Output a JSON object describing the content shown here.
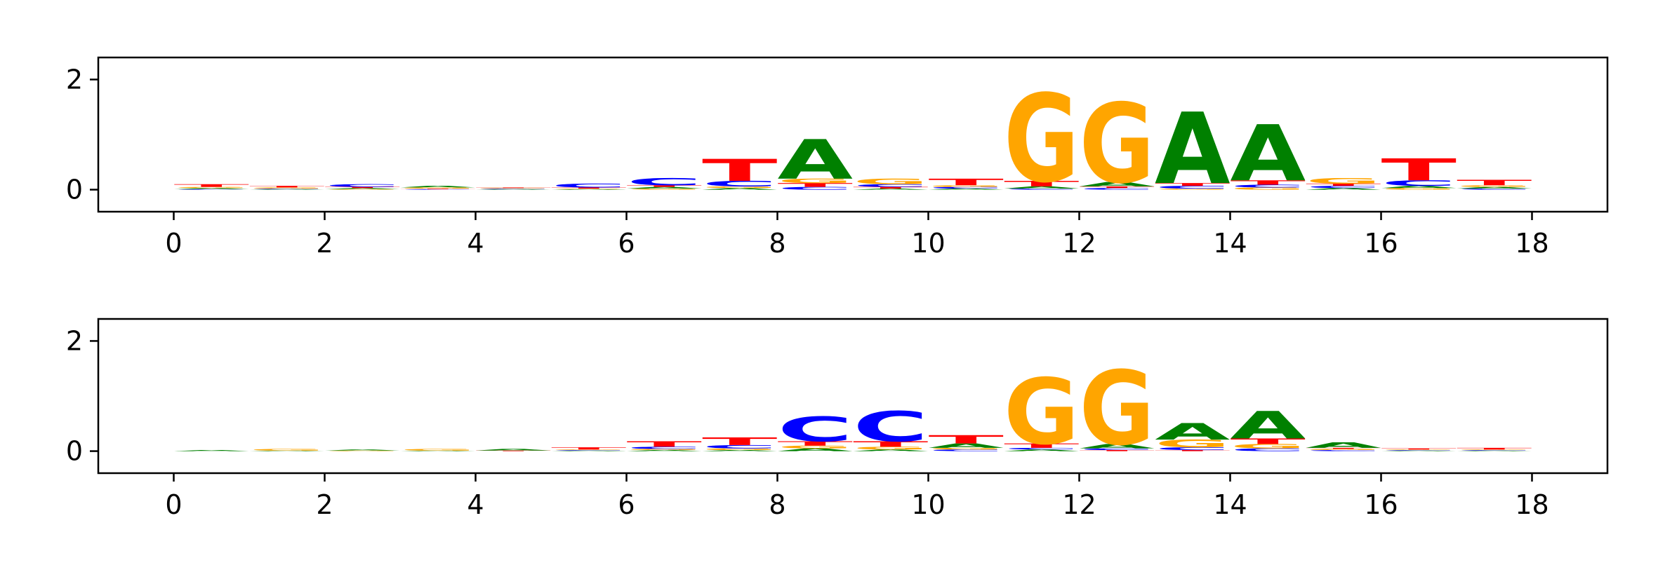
{
  "chart_data": [
    {
      "type": "sequence-logo",
      "title": "",
      "xlabel": "",
      "ylabel": "",
      "xlim": [
        -1,
        19
      ],
      "ylim": [
        -0.4,
        2.4
      ],
      "xticks": [
        0,
        2,
        4,
        6,
        8,
        10,
        12,
        14,
        16,
        18
      ],
      "xtick_labels": [
        "0",
        "2",
        "4",
        "6",
        "8",
        "10",
        "12",
        "14",
        "16",
        "18"
      ],
      "yticks": [
        0,
        2
      ],
      "ytick_labels": [
        "0",
        "2"
      ],
      "grid": false,
      "alphabet_colors": {
        "A": "#008000",
        "C": "#0000ff",
        "G": "#ffa500",
        "T": "#ff0000"
      },
      "positions": [
        {
          "x": 0,
          "A": 0.02,
          "C": 0.01,
          "G": 0.02,
          "T": 0.05
        },
        {
          "x": 1,
          "A": 0.01,
          "C": 0.01,
          "G": 0.02,
          "T": 0.03
        },
        {
          "x": 2,
          "A": 0.02,
          "C": 0.05,
          "G": 0.01,
          "T": 0.02
        },
        {
          "x": 3,
          "A": 0.03,
          "C": 0.01,
          "G": 0.02,
          "T": 0.01
        },
        {
          "x": 4,
          "A": 0.01,
          "C": 0.01,
          "G": 0.01,
          "T": 0.01
        },
        {
          "x": 5,
          "A": 0.01,
          "C": 0.07,
          "G": 0.01,
          "T": 0.02
        },
        {
          "x": 6,
          "A": 0.03,
          "C": 0.13,
          "G": 0.02,
          "T": 0.03
        },
        {
          "x": 7,
          "A": 0.03,
          "C": 0.1,
          "G": 0.03,
          "T": 0.4
        },
        {
          "x": 8,
          "A": 0.72,
          "C": 0.05,
          "G": 0.08,
          "T": 0.07
        },
        {
          "x": 9,
          "A": 0.02,
          "C": 0.05,
          "G": 0.1,
          "T": 0.03
        },
        {
          "x": 10,
          "A": 0.02,
          "C": 0.03,
          "G": 0.03,
          "T": 0.12
        },
        {
          "x": 11,
          "A": 0.04,
          "C": 0.02,
          "G": 1.6,
          "T": 0.1
        },
        {
          "x": 12,
          "A": 0.08,
          "C": 0.03,
          "G": 1.45,
          "T": 0.03
        },
        {
          "x": 13,
          "A": 1.3,
          "C": 0.05,
          "G": 0.02,
          "T": 0.05
        },
        {
          "x": 14,
          "A": 1.02,
          "C": 0.05,
          "G": 0.04,
          "T": 0.08
        },
        {
          "x": 15,
          "A": 0.03,
          "C": 0.04,
          "G": 0.1,
          "T": 0.04
        },
        {
          "x": 16,
          "A": 0.04,
          "C": 0.1,
          "G": 0.03,
          "T": 0.4
        },
        {
          "x": 17,
          "A": 0.03,
          "C": 0.02,
          "G": 0.03,
          "T": 0.1
        }
      ]
    },
    {
      "type": "sequence-logo",
      "title": "",
      "xlabel": "",
      "ylabel": "",
      "xlim": [
        -1,
        19
      ],
      "ylim": [
        -0.4,
        2.4
      ],
      "xticks": [
        0,
        2,
        4,
        6,
        8,
        10,
        12,
        14,
        16,
        18
      ],
      "xtick_labels": [
        "0",
        "2",
        "4",
        "6",
        "8",
        "10",
        "12",
        "14",
        "16",
        "18"
      ],
      "yticks": [
        0,
        2
      ],
      "ytick_labels": [
        "0",
        "2"
      ],
      "grid": false,
      "alphabet_colors": {
        "A": "#008000",
        "C": "#0000ff",
        "G": "#ffa500",
        "T": "#ff0000"
      },
      "positions": [
        {
          "x": 0,
          "A": 0.02,
          "C": 0.0,
          "G": 0.0,
          "T": 0.0
        },
        {
          "x": 1,
          "A": 0.01,
          "C": 0.0,
          "G": 0.03,
          "T": 0.0
        },
        {
          "x": 2,
          "A": 0.02,
          "C": 0.0,
          "G": 0.01,
          "T": 0.0
        },
        {
          "x": 3,
          "A": 0.01,
          "C": 0.0,
          "G": 0.03,
          "T": 0.0
        },
        {
          "x": 4,
          "A": 0.03,
          "C": 0.0,
          "G": 0.0,
          "T": 0.01
        },
        {
          "x": 5,
          "A": 0.01,
          "C": 0.01,
          "G": 0.01,
          "T": 0.04
        },
        {
          "x": 6,
          "A": 0.02,
          "C": 0.04,
          "G": 0.02,
          "T": 0.1
        },
        {
          "x": 7,
          "A": 0.02,
          "C": 0.06,
          "G": 0.03,
          "T": 0.14
        },
        {
          "x": 8,
          "A": 0.05,
          "C": 0.45,
          "G": 0.05,
          "T": 0.08
        },
        {
          "x": 9,
          "A": 0.03,
          "C": 0.55,
          "G": 0.05,
          "T": 0.1
        },
        {
          "x": 10,
          "A": 0.08,
          "C": 0.03,
          "G": 0.03,
          "T": 0.15
        },
        {
          "x": 11,
          "A": 0.03,
          "C": 0.03,
          "G": 1.2,
          "T": 0.08
        },
        {
          "x": 12,
          "A": 0.08,
          "C": 0.03,
          "G": 1.35,
          "T": 0.02
        },
        {
          "x": 13,
          "A": 0.3,
          "C": 0.05,
          "G": 0.14,
          "T": 0.02
        },
        {
          "x": 14,
          "A": 0.5,
          "C": 0.05,
          "G": 0.08,
          "T": 0.1
        },
        {
          "x": 15,
          "A": 0.1,
          "C": 0.02,
          "G": 0.02,
          "T": 0.02
        },
        {
          "x": 16,
          "A": 0.01,
          "C": 0.01,
          "G": 0.01,
          "T": 0.02
        },
        {
          "x": 17,
          "A": 0.01,
          "C": 0.01,
          "G": 0.01,
          "T": 0.03
        }
      ]
    }
  ]
}
